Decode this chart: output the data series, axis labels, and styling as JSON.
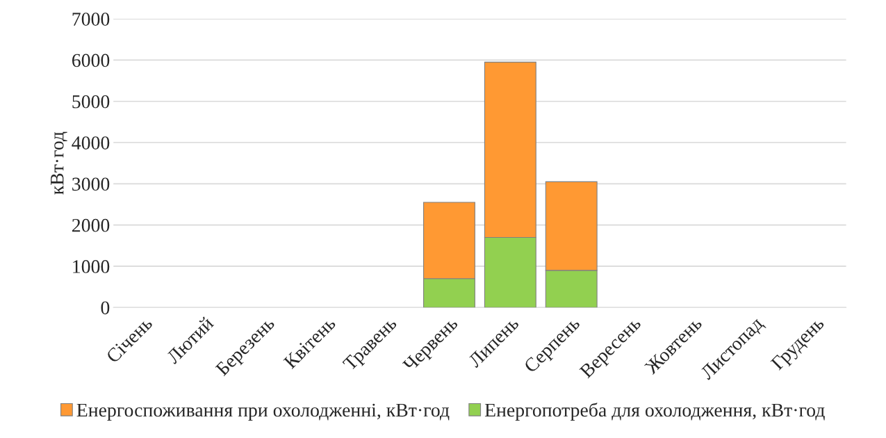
{
  "chart_data": {
    "type": "bar",
    "stacked": true,
    "ylabel": "кВт·год",
    "categories": [
      "Січень",
      "Лютий",
      "Березень",
      "Квітень",
      "Травень",
      "Червень",
      "Липень",
      "Серпень",
      "Вересень",
      "Жовтень",
      "Листопад",
      "Грудень"
    ],
    "series": [
      {
        "name": "Енергопотреба для охолодження, кВт·год",
        "color": "#92d050",
        "values": [
          null,
          null,
          null,
          null,
          null,
          700,
          1700,
          900,
          null,
          null,
          null,
          null
        ]
      },
      {
        "name": "Енергоспоживання при охолодженні, кВт·год",
        "color": "#ff9933",
        "values": [
          null,
          null,
          null,
          null,
          null,
          1850,
          4250,
          2150,
          null,
          null,
          null,
          null
        ]
      }
    ],
    "ylim": [
      0,
      7000
    ],
    "yticks": [
      0,
      1000,
      2000,
      3000,
      4000,
      5000,
      6000,
      7000
    ],
    "grid": "y",
    "legend": "bottom"
  }
}
